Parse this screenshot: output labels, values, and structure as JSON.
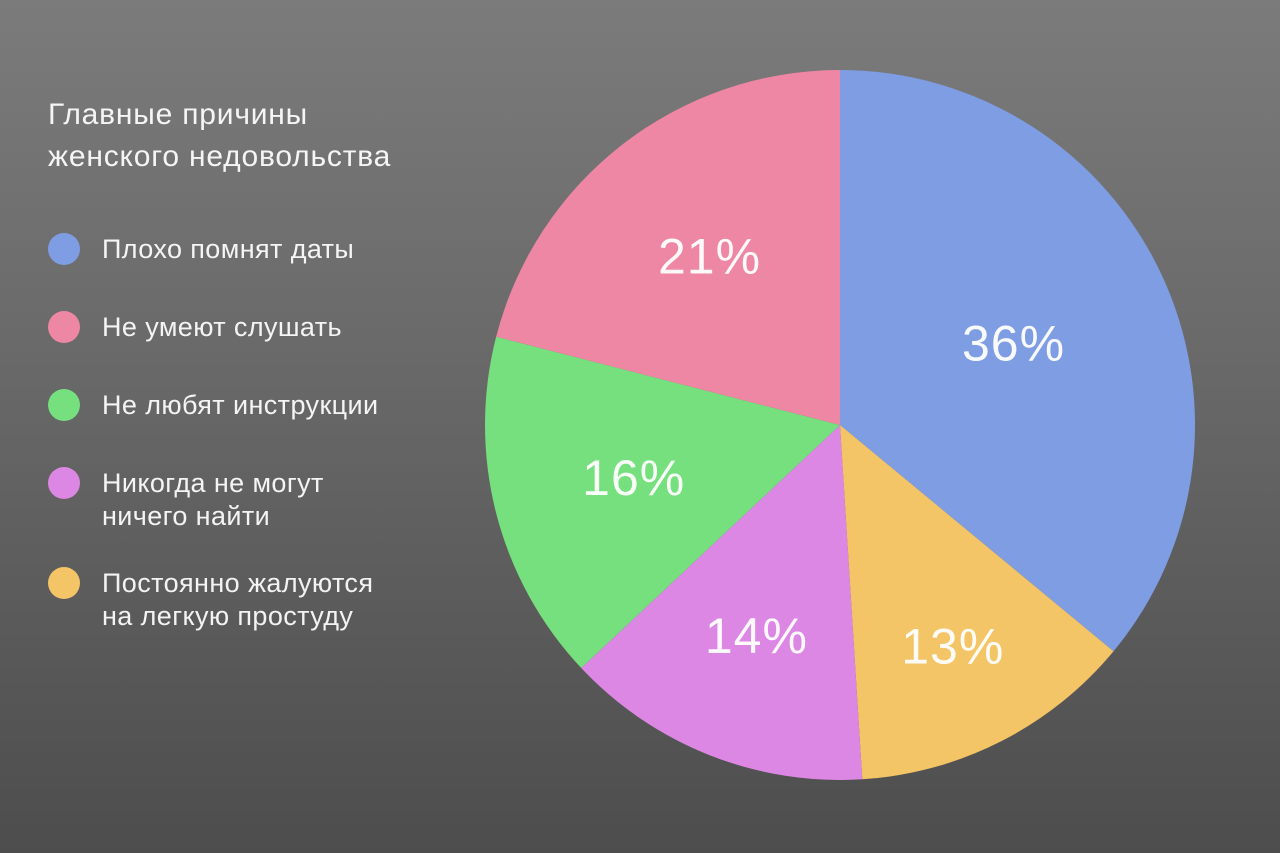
{
  "header": {
    "title_lines": [
      "Главные причины",
      "женского недовольства"
    ]
  },
  "legend": {
    "items": [
      {
        "label_lines": [
          "Плохо помнят даты"
        ],
        "color": "#7e9de3"
      },
      {
        "label_lines": [
          "Не умеют слушать"
        ],
        "color": "#ee87a4"
      },
      {
        "label_lines": [
          "Не любят инструкции"
        ],
        "color": "#75e07d"
      },
      {
        "label_lines": [
          "Никогда не могут",
          "ничего найти"
        ],
        "color": "#dc87e3"
      },
      {
        "label_lines": [
          "Постоянно жалуются",
          "на легкую простуду"
        ],
        "color": "#f4c566"
      }
    ]
  },
  "chart_data": {
    "type": "pie",
    "title": "Главные причины женского недовольства",
    "unit": "%",
    "direction": "clockwise",
    "start_angle_deg": 0,
    "legend_position": "left",
    "slices": [
      {
        "label": "Плохо помнят даты",
        "value": 36,
        "display": "36%",
        "color": "#7e9de3",
        "label_radius_fraction": 0.54
      },
      {
        "label": "Постоянно жалуются на легкую простуду",
        "value": 13,
        "display": "13%",
        "color": "#f4c566",
        "label_radius_fraction": 0.7
      },
      {
        "label": "Никогда не могут ничего найти",
        "value": 14,
        "display": "14%",
        "color": "#dc87e3",
        "label_radius_fraction": 0.64
      },
      {
        "label": "Не любят инструкции",
        "value": 16,
        "display": "16%",
        "color": "#75e07d",
        "label_radius_fraction": 0.6
      },
      {
        "label": "Не умеют слушать",
        "value": 21,
        "display": "21%",
        "color": "#ee87a4",
        "label_radius_fraction": 0.6
      }
    ]
  },
  "colors": {
    "background_top": "#7b7b7b",
    "background_bottom": "#4d4d4d",
    "text": "#fafafa"
  }
}
